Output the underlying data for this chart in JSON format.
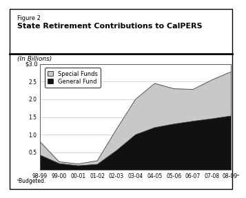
{
  "x_labels": [
    "98-99",
    "99-00",
    "00-01",
    "01-02",
    "02-03",
    "03-04",
    "04-05",
    "05-06",
    "06-07",
    "07-08",
    "08-09ᵃ"
  ],
  "x_positions": [
    0,
    1,
    2,
    3,
    4,
    5,
    6,
    7,
    8,
    9,
    10
  ],
  "general_fund": [
    0.42,
    0.18,
    0.12,
    0.16,
    0.55,
    1.0,
    1.2,
    1.3,
    1.38,
    1.45,
    1.53
  ],
  "special_funds": [
    0.38,
    0.05,
    0.05,
    0.1,
    0.6,
    1.0,
    1.25,
    1.0,
    0.9,
    1.1,
    1.25
  ],
  "ylim": [
    0,
    3.0
  ],
  "yticks": [
    0.5,
    1.0,
    1.5,
    2.0,
    2.5
  ],
  "ytick_labels": [
    "0.5",
    "1.0",
    "1.5",
    "2.0",
    "2.5"
  ],
  "y_top_label": "$3.0",
  "general_fund_color": "#111111",
  "special_funds_color": "#c8c8c8",
  "background_color": "#ffffff",
  "figure_label": "Figure 2",
  "title": "State Retirement Contributions to CalPERS",
  "subtitle": "(In Billions)",
  "footnote": "ᵃBudgeted.",
  "legend_special": "Special Funds",
  "legend_general": "General Fund",
  "grid_color": "#d0d0d0",
  "chart_border_color": "#888888"
}
